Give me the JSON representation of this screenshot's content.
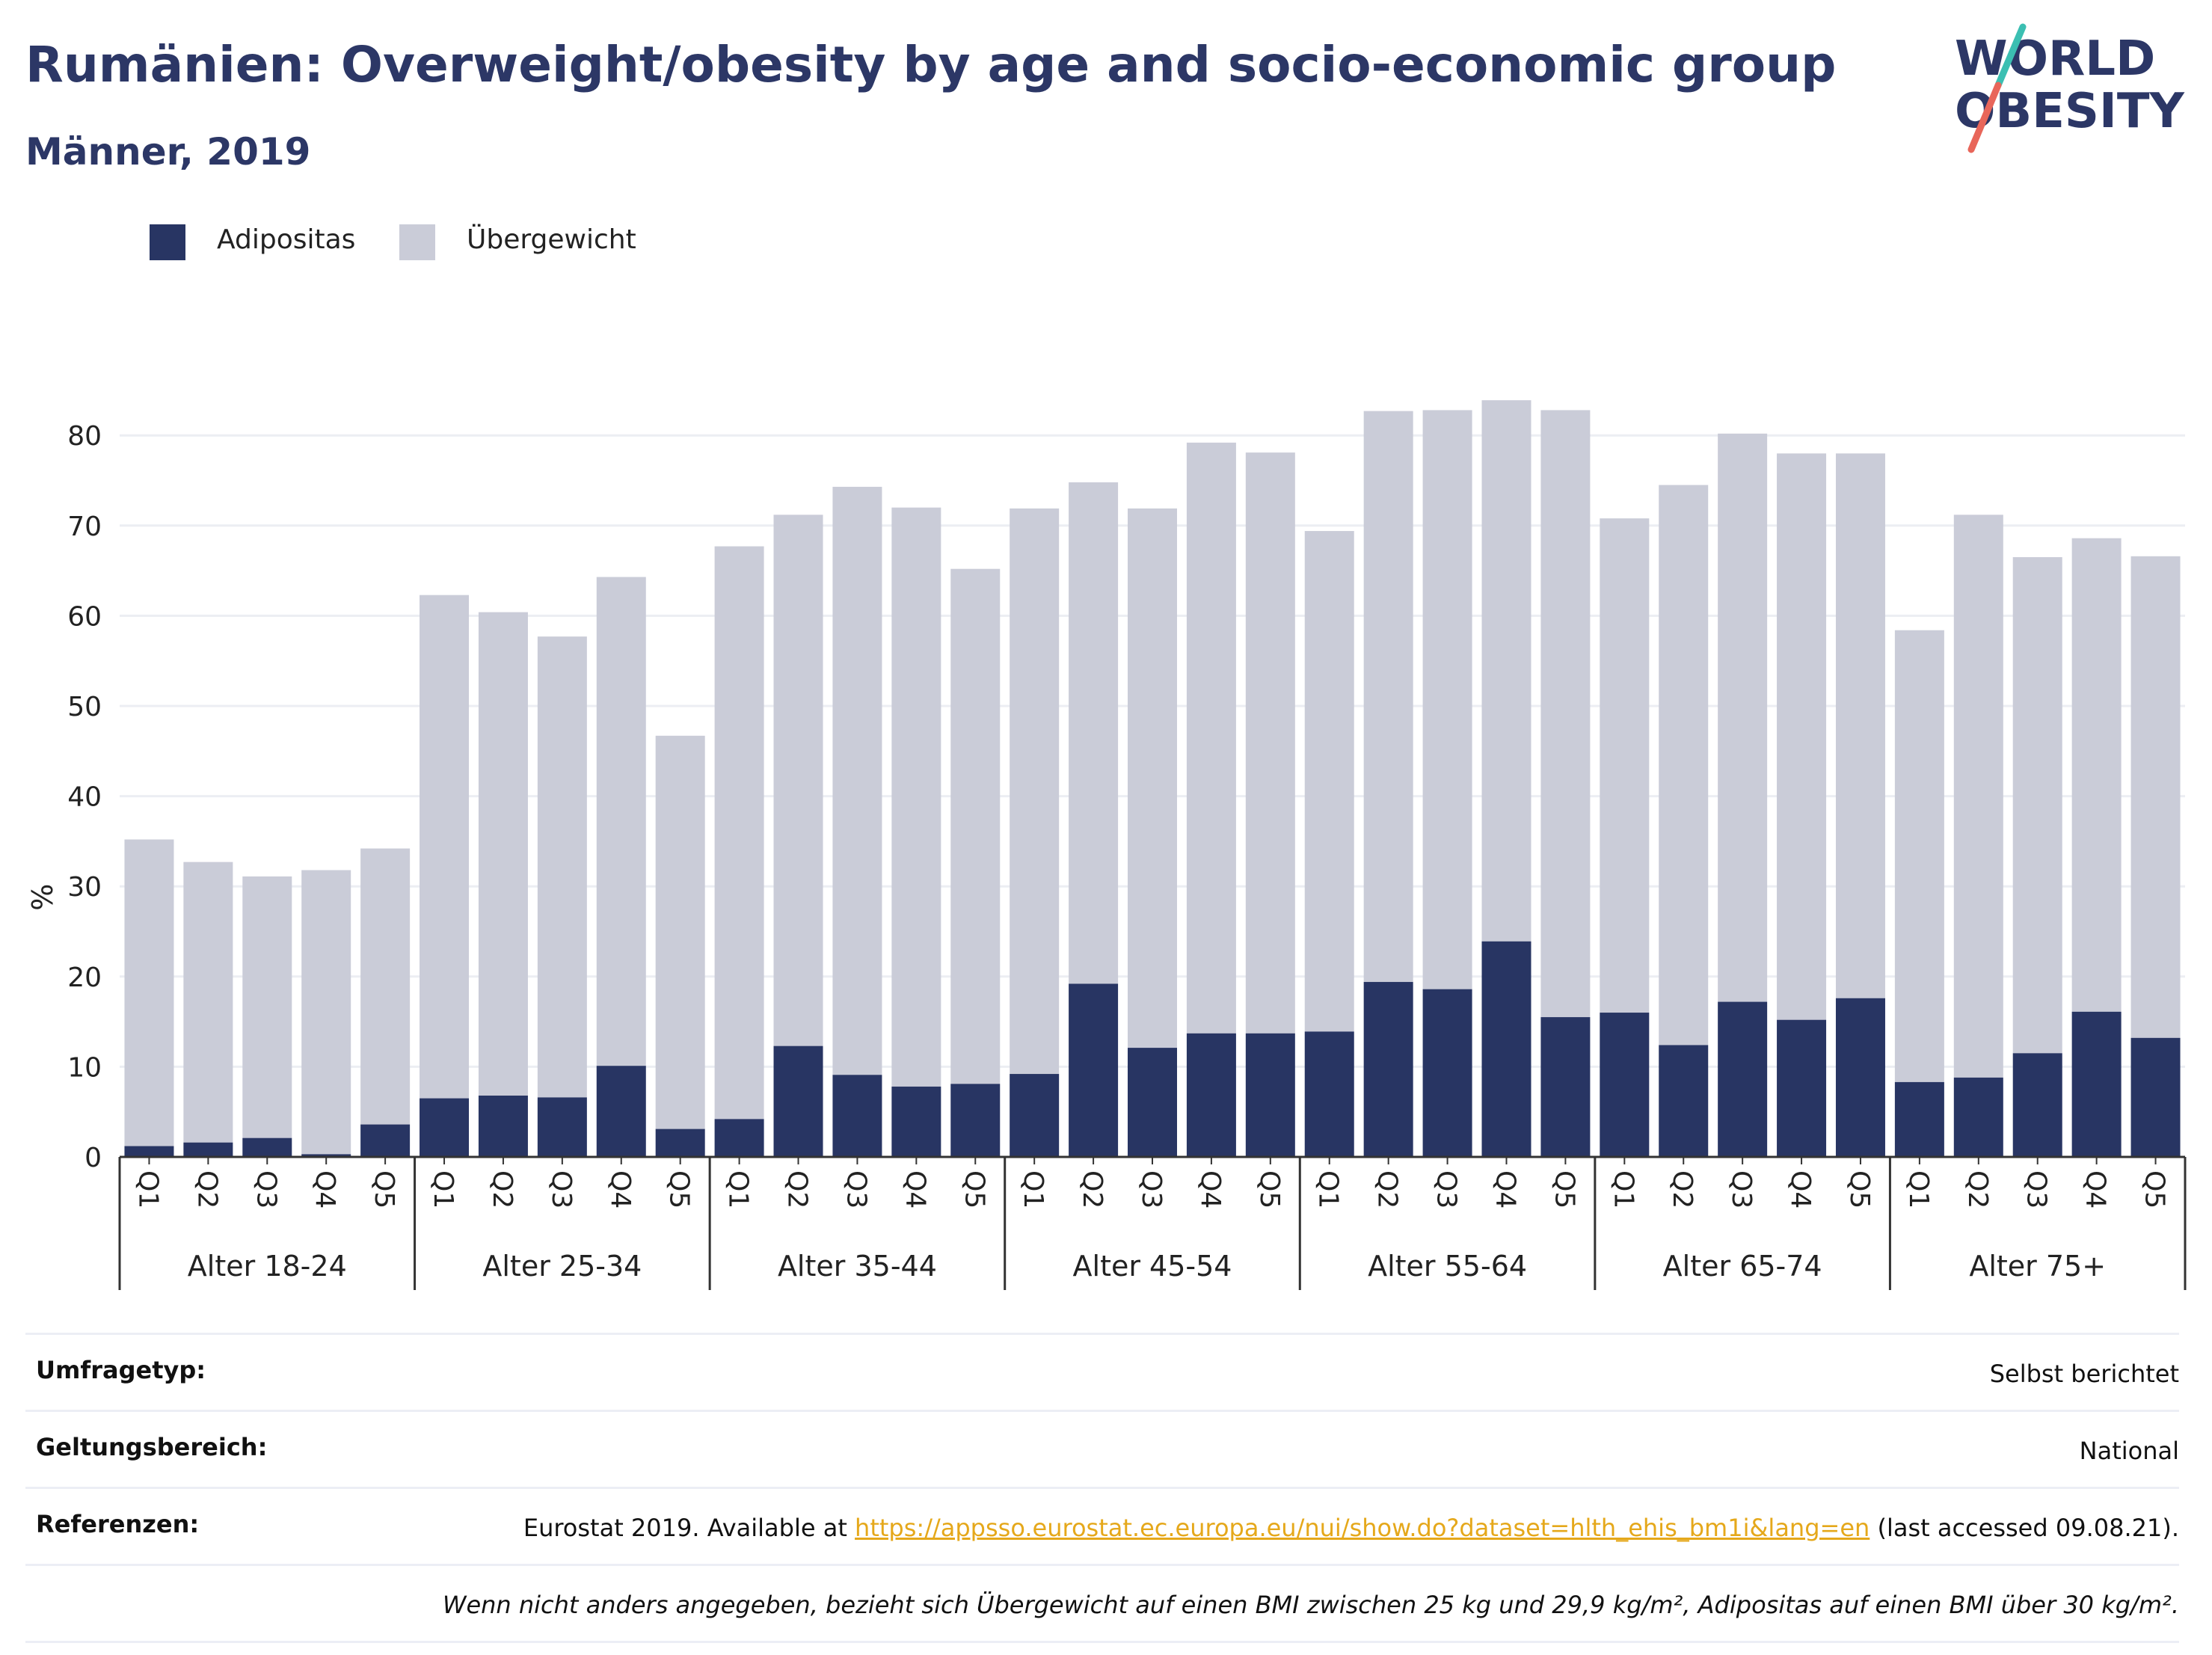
{
  "header": {
    "title": "Rumänien: Overweight/obesity by age and socio-economic group",
    "subtitle": "Männer, 2019"
  },
  "logo": {
    "line1": "WORLD",
    "line2": "OBESITY",
    "accent_teal": "#3bbfb2",
    "accent_red": "#e8665a",
    "color": "#2c3766"
  },
  "legend": {
    "items": [
      {
        "label": "Adipositas",
        "color": "#283563"
      },
      {
        "label": "Übergewicht",
        "color": "#caccd8"
      }
    ]
  },
  "chart_data": {
    "type": "bar",
    "stacked": true,
    "ylabel": "%",
    "ylim": [
      0,
      90
    ],
    "yticks": [
      0,
      10,
      20,
      30,
      40,
      50,
      60,
      70,
      80
    ],
    "grid": true,
    "legend_position": "top-left",
    "quintiles": [
      "Q1",
      "Q2",
      "Q3",
      "Q4",
      "Q5"
    ],
    "groups": [
      "Alter 18-24",
      "Alter 25-34",
      "Alter 35-44",
      "Alter 45-54",
      "Alter 55-64",
      "Alter 65-74",
      "Alter 75+"
    ],
    "series": [
      {
        "name": "Adipositas",
        "color": "#283563",
        "values": [
          1.2,
          1.6,
          2.1,
          0.3,
          3.6,
          6.5,
          6.8,
          6.6,
          10.1,
          3.1,
          4.2,
          12.3,
          9.1,
          7.8,
          8.1,
          9.2,
          19.2,
          12.1,
          13.7,
          13.7,
          13.9,
          19.4,
          18.6,
          23.9,
          15.5,
          16.0,
          12.4,
          17.2,
          15.2,
          17.6,
          8.3,
          8.8,
          11.5,
          16.1,
          13.2
        ]
      },
      {
        "name": "Übergewicht",
        "color": "#caccd8",
        "values": [
          34.0,
          31.1,
          29.0,
          31.5,
          30.6,
          55.8,
          53.6,
          51.1,
          54.2,
          43.6,
          63.5,
          58.9,
          65.2,
          64.2,
          57.1,
          62.7,
          55.6,
          59.8,
          65.5,
          64.4,
          55.5,
          63.3,
          64.2,
          60.0,
          67.3,
          54.8,
          62.1,
          63.0,
          62.8,
          60.4,
          50.1,
          62.4,
          55.0,
          52.5,
          53.4
        ]
      }
    ],
    "totals": [
      35.2,
      32.7,
      31.1,
      31.8,
      34.2,
      62.3,
      60.4,
      57.7,
      64.3,
      46.7,
      67.7,
      71.2,
      74.3,
      72.0,
      65.2,
      71.9,
      74.8,
      71.9,
      79.2,
      78.1,
      69.4,
      82.7,
      82.8,
      83.9,
      82.8,
      70.8,
      74.5,
      80.2,
      78.0,
      78.0,
      58.4,
      71.2,
      66.5,
      68.6,
      66.6
    ]
  },
  "info": {
    "rows": [
      {
        "label": "Umfragetyp:",
        "value": "Selbst berichtet"
      },
      {
        "label": "Geltungsbereich:",
        "value": "National"
      },
      {
        "label": "Referenzen:",
        "prefix": "Eurostat 2019. Available at ",
        "link": "https://appsso.eurostat.ec.europa.eu/nui/show.do?dataset=hlth_ehis_bm1i&lang=en",
        "suffix": " (last accessed 09.08.21)."
      }
    ],
    "note": "Wenn nicht anders angegeben, bezieht sich Übergewicht auf einen BMI zwischen 25 kg und 29,9 kg/m², Adipositas auf einen BMI über 30 kg/m²."
  }
}
